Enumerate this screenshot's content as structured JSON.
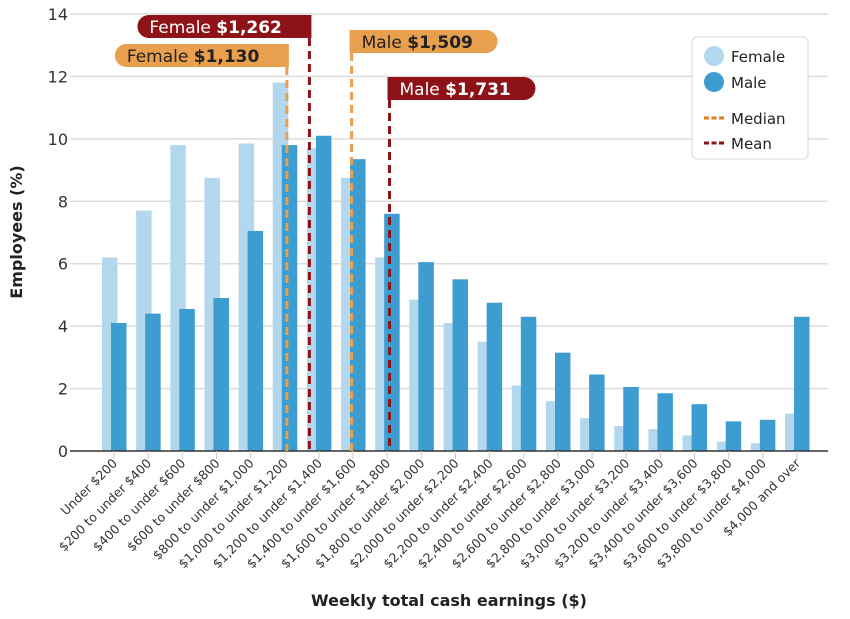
{
  "chart_data": {
    "type": "bar",
    "title": "",
    "xlabel": "Weekly total cash earnings ($)",
    "ylabel": "Employees (%)",
    "ylim": [
      0,
      14
    ],
    "yticks": [
      0,
      2,
      4,
      6,
      8,
      10,
      12,
      14
    ],
    "grid": true,
    "legend_position": "top-right",
    "categories": [
      "Under $200",
      "$200 to under $400",
      "$400 to under $600",
      "$600 to under $800",
      "$800 to under $1,000",
      "$1,000 to under $1,200",
      "$1,200 to under $1,400",
      "$1,400 to under $1,600",
      "$1,600 to under $1,800",
      "$1,800 to under $2,000",
      "$2,000 to under $2,200",
      "$2,200 to under $2,400",
      "$2,400 to under $2,600",
      "$2,600 to under $2,800",
      "$2,800 to under $3,000",
      "$3,000 to under $3,200",
      "$3,200 to under $3,400",
      "$3,400 to under $3,600",
      "$3,600 to under $3,800",
      "$3,800 to under $4,000",
      "$4,000 and over"
    ],
    "series": [
      {
        "name": "Female",
        "color": "#b3d8ee",
        "values": [
          6.2,
          7.7,
          9.8,
          8.75,
          9.85,
          11.8,
          9.7,
          8.75,
          6.2,
          4.85,
          4.1,
          3.5,
          2.1,
          1.6,
          1.05,
          0.8,
          0.7,
          0.5,
          0.3,
          0.25,
          1.2
        ]
      },
      {
        "name": "Male",
        "color": "#3d9cd0",
        "values": [
          4.1,
          4.4,
          4.55,
          4.9,
          7.05,
          9.8,
          10.1,
          9.35,
          7.6,
          6.05,
          5.5,
          4.75,
          4.3,
          3.15,
          2.45,
          2.05,
          1.85,
          1.5,
          0.95,
          1.0,
          4.3
        ]
      }
    ],
    "reference_lines": [
      {
        "kind": "Median",
        "group": "Female",
        "label": "Female",
        "value_label": "$1,130",
        "value": 1130,
        "color": "#e8a04e"
      },
      {
        "kind": "Mean",
        "group": "Female",
        "label": "Female",
        "value_label": "$1,262",
        "value": 1262,
        "color": "#8e1318"
      },
      {
        "kind": "Median",
        "group": "Male",
        "label": "Male",
        "value_label": "$1,509",
        "value": 1509,
        "color": "#e8a04e"
      },
      {
        "kind": "Mean",
        "group": "Male",
        "label": "Male",
        "value_label": "$1,731",
        "value": 1731,
        "color": "#8e1318"
      }
    ],
    "legend": [
      {
        "label": "Female",
        "type": "circle",
        "color": "#b3d8ee"
      },
      {
        "label": "Male",
        "type": "circle",
        "color": "#3d9cd0"
      },
      {
        "label": "Median",
        "type": "dash",
        "color": "#e07b1a"
      },
      {
        "label": "Mean",
        "type": "dash",
        "color": "#8e1318"
      }
    ]
  }
}
